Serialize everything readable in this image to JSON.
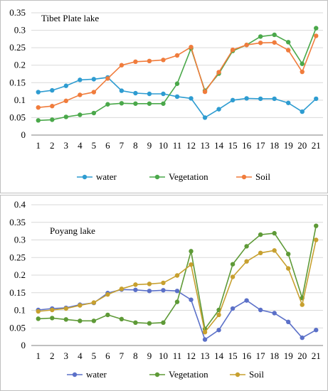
{
  "chart_data": [
    {
      "type": "line",
      "title": "Tibet Plate lake",
      "x": [
        "1",
        "2",
        "3",
        "4",
        "5",
        "6",
        "7",
        "8",
        "9",
        "10",
        "11",
        "12",
        "13",
        "14",
        "15",
        "16",
        "17",
        "18",
        "19",
        "20",
        "21"
      ],
      "ylim": [
        0,
        0.35
      ],
      "yticks": [
        "0",
        "0.05",
        "0.1",
        "0.15",
        "0.2",
        "0.25",
        "0.3",
        "0.35"
      ],
      "grid": true,
      "legend_position": "bottom",
      "series": [
        {
          "name": "water",
          "color": "#2e9cd1",
          "values": [
            0.123,
            0.128,
            0.141,
            0.158,
            0.16,
            0.165,
            0.127,
            0.12,
            0.118,
            0.118,
            0.11,
            0.105,
            0.05,
            0.074,
            0.1,
            0.105,
            0.104,
            0.104,
            0.092,
            0.067,
            0.104
          ]
        },
        {
          "name": "Vegetation",
          "color": "#4aa84a",
          "values": [
            0.042,
            0.044,
            0.052,
            0.058,
            0.063,
            0.088,
            0.091,
            0.09,
            0.09,
            0.09,
            0.147,
            0.248,
            0.127,
            0.176,
            0.241,
            0.258,
            0.282,
            0.287,
            0.266,
            0.204,
            0.306
          ]
        },
        {
          "name": "Soil",
          "color": "#f07c3c",
          "values": [
            0.079,
            0.083,
            0.098,
            0.115,
            0.123,
            0.162,
            0.2,
            0.21,
            0.212,
            0.215,
            0.228,
            0.252,
            0.124,
            0.18,
            0.244,
            0.258,
            0.264,
            0.265,
            0.243,
            0.181,
            0.284
          ]
        }
      ]
    },
    {
      "type": "line",
      "title": "Poyang lake",
      "x": [
        "1",
        "2",
        "3",
        "4",
        "5",
        "6",
        "7",
        "8",
        "9",
        "10",
        "11",
        "12",
        "13",
        "14",
        "15",
        "16",
        "17",
        "18",
        "19",
        "20",
        "21"
      ],
      "ylim": [
        0,
        0.4
      ],
      "yticks": [
        "0",
        "0.05",
        "0.1",
        "0.15",
        "0.2",
        "0.25",
        "0.3",
        "0.35",
        "0.4"
      ],
      "grid": true,
      "legend_position": "bottom",
      "series": [
        {
          "name": "water",
          "color": "#5b70c8",
          "values": [
            0.101,
            0.105,
            0.107,
            0.116,
            0.121,
            0.149,
            0.159,
            0.158,
            0.155,
            0.157,
            0.155,
            0.13,
            0.017,
            0.044,
            0.105,
            0.128,
            0.101,
            0.092,
            0.067,
            0.022,
            0.044
          ]
        },
        {
          "name": "Vegetation",
          "color": "#5e9a37",
          "values": [
            0.076,
            0.078,
            0.074,
            0.07,
            0.07,
            0.087,
            0.075,
            0.065,
            0.063,
            0.065,
            0.124,
            0.268,
            0.047,
            0.101,
            0.231,
            0.282,
            0.315,
            0.319,
            0.26,
            0.135,
            0.34
          ]
        },
        {
          "name": "Soil",
          "color": "#c7a02f",
          "values": [
            0.097,
            0.101,
            0.105,
            0.114,
            0.122,
            0.145,
            0.161,
            0.173,
            0.175,
            0.178,
            0.199,
            0.23,
            0.038,
            0.087,
            0.195,
            0.239,
            0.263,
            0.27,
            0.219,
            0.116,
            0.3
          ]
        }
      ]
    }
  ]
}
